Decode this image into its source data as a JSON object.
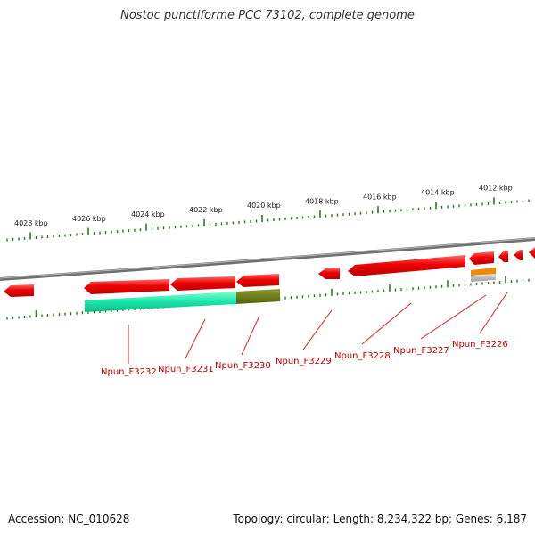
{
  "title": "Nostoc punctiforme PCC 73102, complete genome",
  "footer": {
    "accession": "Accession: NC_010628",
    "summary": "Topology: circular; Length: 8,234,322 bp; Genes: 6,187"
  },
  "scale_labels": [
    "4028 kbp",
    "4026 kbp",
    "4024 kbp",
    "4022 kbp",
    "4020 kbp",
    "4018 kbp",
    "4016 kbp",
    "4014 kbp",
    "4012 kbp"
  ],
  "gene_labels": [
    "Npun_F3232",
    "Npun_F3231",
    "Npun_F3230",
    "Npun_F3229",
    "Npun_F3228",
    "Npun_F3227",
    "Npun_F3226"
  ],
  "colors": {
    "backbone": "#808080",
    "gene": "#ee0000",
    "tick": "#2a7a1e",
    "teal_feature": "#19e6a8",
    "olive_feature": "#6e7a14",
    "orange_feature": "#ee8c00",
    "gray_feature": "#bdbdbd",
    "label_line": "#dd2222"
  }
}
